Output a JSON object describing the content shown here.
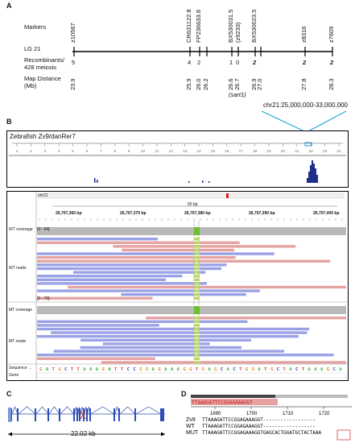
{
  "panels": {
    "a": "A",
    "b": "B",
    "c": "C",
    "d": "D"
  },
  "panel_a": {
    "markers_label": "Markers",
    "lg_label": "LG 21",
    "recomb_label": "Recombinants/\n428 meiosis",
    "map_label": "Map Distance\n(Mb)",
    "markers": [
      {
        "name": "z10567",
        "recomb": "5",
        "dist": "23.9"
      },
      {
        "name": "CR631122.8",
        "recomb": "4",
        "dist": "25.9"
      },
      {
        "name": "FP236633.8",
        "recomb": "2",
        "dist": "26.0"
      },
      {
        "name": "",
        "recomb": "",
        "dist": "26.2"
      },
      {
        "name": "BX530031.5\n(z9233)",
        "recomb": "1",
        "dist": "26.6"
      },
      {
        "name": "",
        "recomb": "0",
        "dist": "26.7"
      },
      {
        "name": "BX530023.5",
        "recomb": "2",
        "dist": "26.9"
      },
      {
        "name": "",
        "recomb": "",
        "dist": "27.0"
      },
      {
        "name": "z8316",
        "recomb": "2",
        "dist": "27.8"
      },
      {
        "name": "z7609",
        "recomb": "2",
        "dist": "28.3"
      }
    ],
    "sart1": "(sart1)",
    "callout": "chr21:25,000,000-33,000,000"
  },
  "panel_b": {
    "genome_title": "Zebrafish Zv9/danRer7",
    "ruler_ticks": [
      "1",
      "2",
      "3",
      "4",
      "5",
      "6",
      "7",
      "8",
      "9",
      "10",
      "11",
      "12",
      "13",
      "14",
      "15",
      "16",
      "17",
      "18",
      "19",
      "20",
      "21",
      "22",
      "23",
      "24"
    ],
    "chrom": "chr21",
    "span_label": "50 bp",
    "bp_ticks": [
      "26,707,360 bp",
      "26,707,370 bp",
      "26,707,380 bp",
      "26,707,390 bp",
      "26,707,400 bp"
    ],
    "wt_cov_label": "WT coverage",
    "wt_cov_range": "[0 - 64]",
    "wt_reads_label": "WT reads",
    "mt_cov_label": "MT coverage",
    "mt_cov_range": "[0 - 70]",
    "mt_reads_label": "MT reads",
    "sequence_label": "Sequence →",
    "gene_label": "Gene",
    "sequence": "GATGCTTAAAGATTCCGGAGAAAGGTGAGCACTGGATGCTACTAAAGCA",
    "colors": {
      "A": "#3cb043",
      "T": "#e0302c",
      "G": "#d98b1c",
      "C": "#2a3fcf",
      "read_blue": "#9aa2e6",
      "read_pink": "#e6a3a3",
      "cov": "#b9b9b9",
      "mut": "#6cc02a"
    }
  },
  "panel_c": {
    "scale": "22.02 kb",
    "colors": {
      "exon": "#2d4fb5",
      "intron": "#2d4fb5",
      "mark": "#c0392b"
    }
  },
  "panel_d": {
    "ticks": [
      "1690",
      "1700",
      "1710",
      "1720"
    ],
    "consensus": "TTAAAGATTCCGGAGAAAGGT",
    "rows": [
      {
        "label": "Zv9",
        "seq": "TTAAAGATTCCGGAGAAAGGT------------------"
      },
      {
        "label": "WT",
        "seq": "TTAAAGATTCCGGAGAAAGGT------------------"
      },
      {
        "label": "MUT",
        "seq": "TTAAAGATTCCGGAGAAAGGTGAGCACTGGATGCTACTAAA"
      }
    ],
    "colors": {
      "highlight": "#e8a0a0",
      "bar": "#555"
    }
  }
}
